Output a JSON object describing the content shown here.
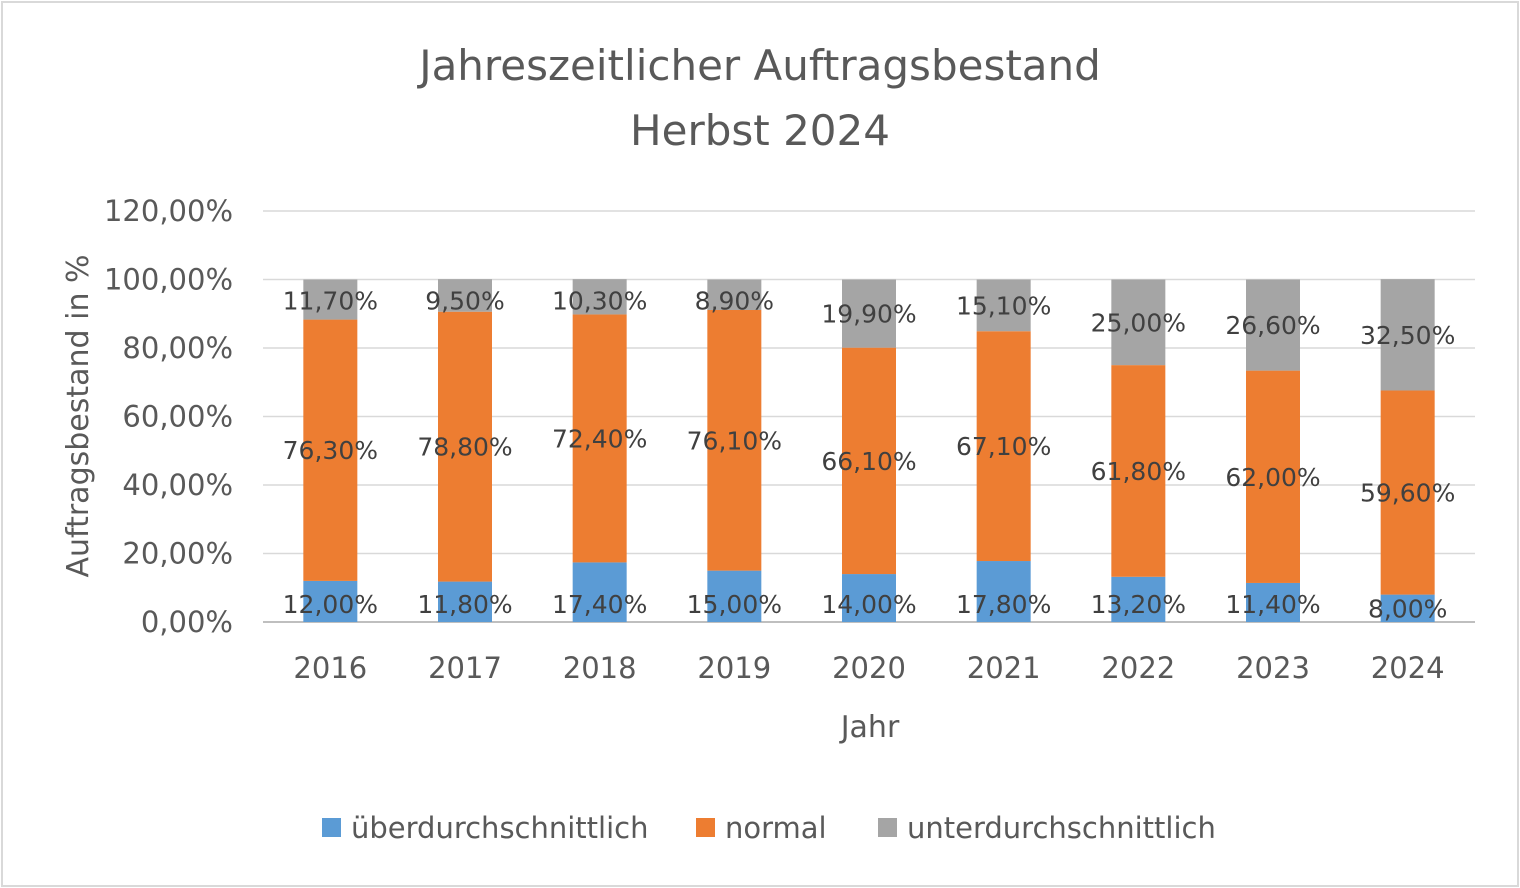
{
  "chart_data": {
    "type": "bar",
    "stacked": true,
    "title": "Jahreszeitlicher Auftragsbestand",
    "subtitle": "Herbst 2024",
    "xlabel": "Jahr",
    "ylabel": "Auftragsbestand in %",
    "categories": [
      "2016",
      "2017",
      "2018",
      "2019",
      "2020",
      "2021",
      "2022",
      "2023",
      "2024"
    ],
    "ylim": [
      0,
      120
    ],
    "yticks": [
      "0,00%",
      "20,00%",
      "40,00%",
      "60,00%",
      "80,00%",
      "100,00%",
      "120,00%"
    ],
    "grid": true,
    "legend_position": "bottom",
    "series": [
      {
        "name": "überdurchschnittlich",
        "color": "#5b9bd5",
        "values": [
          12.0,
          11.8,
          17.4,
          15.0,
          14.0,
          17.8,
          13.2,
          11.4,
          8.0
        ],
        "labels": [
          "12,00%",
          "11,80%",
          "17,40%",
          "15,00%",
          "14,00%",
          "17,80%",
          "13,20%",
          "11,40%",
          "8,00%"
        ]
      },
      {
        "name": "normal",
        "color": "#ed7d31",
        "values": [
          76.3,
          78.8,
          72.4,
          76.1,
          66.1,
          67.1,
          61.8,
          62.0,
          59.6
        ],
        "labels": [
          "76,30%",
          "78,80%",
          "72,40%",
          "76,10%",
          "66,10%",
          "67,10%",
          "61,80%",
          "62,00%",
          "59,60%"
        ]
      },
      {
        "name": "unterdurchschnittlich",
        "color": "#a5a5a5",
        "values": [
          11.7,
          9.5,
          10.3,
          8.9,
          19.9,
          15.1,
          25.0,
          26.6,
          32.5
        ],
        "labels": [
          "11,70%",
          "9,50%",
          "10,30%",
          "8,90%",
          "19,90%",
          "15,10%",
          "25,00%",
          "26,60%",
          "32,50%"
        ]
      }
    ]
  }
}
